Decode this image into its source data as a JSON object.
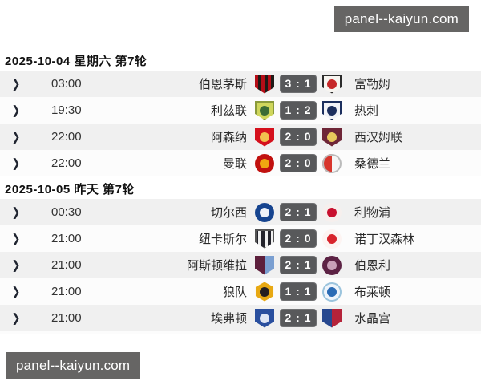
{
  "watermark_top": {
    "text": "panel--kaiyun.com"
  },
  "watermark_bottom": {
    "text": "panel--kaiyun.com"
  },
  "colors": {
    "badge_bg": "#58595b",
    "badge_text": "#ffffff",
    "row_alt_bg": "#f0f0f0",
    "row_bg": "#fcfcfc",
    "watermark_bg": "#666564"
  },
  "sections": [
    {
      "header": "2025-10-04 星期六 第7轮",
      "matches": [
        {
          "time": "03:00",
          "home": "伯恩茅斯",
          "away": "富勒姆",
          "home_goals": 3,
          "away_goals": 1,
          "home_logo": {
            "name": "bournemouth-logo",
            "shape": "shield",
            "pattern": "stripes",
            "c1": "#b50d17",
            "c2": "#1f1a17"
          },
          "away_logo": {
            "name": "fulham-logo",
            "shape": "shield",
            "pattern": "inner",
            "c1": "#f7f5f0",
            "c2": "#c62828",
            "border": "#2b2b2b"
          }
        },
        {
          "time": "19:30",
          "home": "利兹联",
          "away": "热刺",
          "home_goals": 1,
          "away_goals": 2,
          "home_logo": {
            "name": "leeds-logo",
            "shape": "shield",
            "pattern": "inner",
            "c1": "#cfd65c",
            "c2": "#3a6b35",
            "border": "#8a9a3b"
          },
          "away_logo": {
            "name": "tottenham-logo",
            "shape": "shield",
            "pattern": "inner",
            "c1": "#f2f3f7",
            "c2": "#1c2f5e",
            "border": "#1c2f5e"
          }
        },
        {
          "time": "22:00",
          "home": "阿森纳",
          "away": "西汉姆联",
          "home_goals": 2,
          "away_goals": 0,
          "home_logo": {
            "name": "arsenal-logo",
            "shape": "shield",
            "pattern": "inner",
            "c1": "#d5101c",
            "c2": "#f2c14e"
          },
          "away_logo": {
            "name": "west-ham-logo",
            "shape": "shield",
            "pattern": "inner",
            "c1": "#6e2637",
            "c2": "#e8c95c"
          }
        },
        {
          "time": "22:00",
          "home": "曼联",
          "away": "桑德兰",
          "home_goals": 2,
          "away_goals": 0,
          "home_logo": {
            "name": "man-utd-logo",
            "shape": "circle",
            "pattern": "inner",
            "c1": "#c1110f",
            "c2": "#f0a811"
          },
          "away_logo": {
            "name": "sunderland-logo",
            "shape": "circle",
            "pattern": "split",
            "c1": "#d8352c",
            "c2": "#f5f5f5",
            "border": "#bbbbbb"
          }
        }
      ]
    },
    {
      "header": "2025-10-05 昨天 第7轮",
      "matches": [
        {
          "time": "00:30",
          "home": "切尔西",
          "away": "利物浦",
          "home_goals": 2,
          "away_goals": 1,
          "home_logo": {
            "name": "chelsea-logo",
            "shape": "circle",
            "pattern": "inner",
            "c1": "#16448f",
            "c2": "#eef2f8"
          },
          "away_logo": {
            "name": "liverpool-logo",
            "shape": "circle",
            "pattern": "inner",
            "c1": "#f6efed",
            "c2": "#c8102e"
          }
        },
        {
          "time": "21:00",
          "home": "纽卡斯尔",
          "away": "诺丁汉森林",
          "home_goals": 2,
          "away_goals": 0,
          "home_logo": {
            "name": "newcastle-logo",
            "shape": "shield",
            "pattern": "stripes",
            "c1": "#24242c",
            "c2": "#f0f0f0",
            "border": "#555555"
          },
          "away_logo": {
            "name": "nottingham-forest-logo",
            "shape": "circle",
            "pattern": "inner",
            "c1": "#fdf4f2",
            "c2": "#d8242c"
          }
        },
        {
          "time": "21:00",
          "home": "阿斯顿维拉",
          "away": "伯恩利",
          "home_goals": 2,
          "away_goals": 1,
          "home_logo": {
            "name": "aston-villa-logo",
            "shape": "shield",
            "pattern": "split",
            "c1": "#5d1f3c",
            "c2": "#7a9fd1"
          },
          "away_logo": {
            "name": "burnley-logo",
            "shape": "circle",
            "pattern": "inner",
            "c1": "#5c2244",
            "c2": "#c8a0b8"
          }
        },
        {
          "time": "21:00",
          "home": "狼队",
          "away": "布莱顿",
          "home_goals": 1,
          "away_goals": 1,
          "home_logo": {
            "name": "wolves-logo",
            "shape": "hex",
            "pattern": "inner",
            "c1": "#e8a913",
            "c2": "#241f20"
          },
          "away_logo": {
            "name": "brighton-logo",
            "shape": "circle",
            "pattern": "inner",
            "c1": "#eef4fb",
            "c2": "#2a6bb5",
            "border": "#9bc4dd"
          }
        },
        {
          "time": "21:00",
          "home": "埃弗顿",
          "away": "水晶宫",
          "home_goals": 2,
          "away_goals": 1,
          "home_logo": {
            "name": "everton-logo",
            "shape": "shield",
            "pattern": "inner",
            "c1": "#2a4f9e",
            "c2": "#dfe6f5"
          },
          "away_logo": {
            "name": "crystal-palace-logo",
            "shape": "shield",
            "pattern": "split",
            "c1": "#27488f",
            "c2": "#b5233a"
          }
        }
      ]
    }
  ],
  "partial_row": {
    "home_logo": {
      "name": "clipped-home-logo",
      "shape": "circle",
      "pattern": "solid",
      "c1": "#cf4a3f"
    },
    "away_logo": {
      "name": "clipped-away-logo",
      "shape": "circle",
      "pattern": "solid",
      "c1": "#9cc3cd"
    }
  },
  "score_separator": " : ",
  "chevron_glyph": "❯"
}
